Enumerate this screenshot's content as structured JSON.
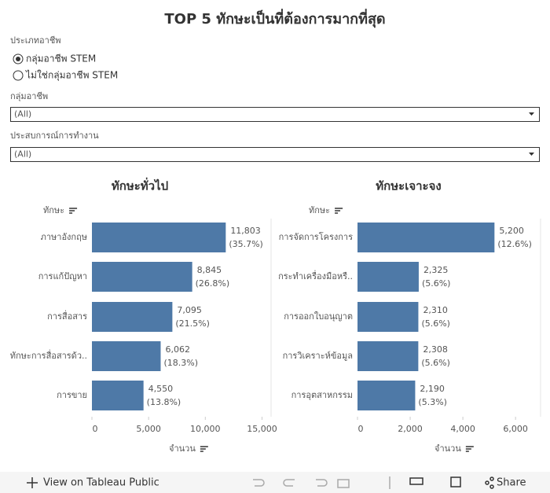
{
  "title": "TOP 5 ทักษะเป็นที่ต้องการมากที่สุด",
  "filters": {
    "occupation_type": {
      "label": "ประเภทอาชีพ",
      "options": [
        "กลุ่มอาชีพ STEM",
        "ไม่ใช่กลุ่มอาชีพ STEM"
      ]
    },
    "occupation_group": {
      "label": "กลุ่มอาชีพ",
      "value": "(All)"
    },
    "experience": {
      "label": "ประสบการณ์การทำงาน",
      "value": "(All)"
    }
  },
  "toolbar": {
    "view_link": "View on Tableau Public",
    "share": "Share"
  },
  "chart_data": [
    {
      "type": "barh",
      "title": "ทักษะทั่วไป",
      "y_label": "ทักษะ",
      "x_label": "จำนวน",
      "color": "#4e79a7",
      "categories": [
        "ภาษาอังกฤษ",
        "การแก้ปัญหา",
        "การสื่อสาร",
        "ทักษะการสื่อสารด้ว..",
        "การขาย"
      ],
      "values": [
        11803,
        8845,
        7095,
        6062,
        4550
      ],
      "value_labels": [
        "11,803",
        "8,845",
        "7,095",
        "6,062",
        "4,550"
      ],
      "percent_labels": [
        "(35.7%)",
        "(26.8%)",
        "(21.5%)",
        "(18.3%)",
        "(13.8%)"
      ],
      "xlim": [
        0,
        15800
      ],
      "xticks": [
        0,
        {
          "value": 5000,
          "label": "5,000"
        },
        {
          "value": 10000,
          "label": "10,000"
        },
        {
          "value": 15000,
          "label": "15,000"
        }
      ]
    },
    {
      "type": "barh",
      "title": "ทักษะเจาะจง",
      "y_label": "ทักษะ",
      "x_label": "จำนวน",
      "color": "#4e79a7",
      "categories": [
        "การจัดการโครงการ",
        "กระทำเครื่องมือหรื..",
        "การออกใบอนุญาต",
        "การวิเคราะห์ข้อมูล",
        "การอุตสาหกรรม"
      ],
      "values": [
        5200,
        2325,
        2310,
        2308,
        2190
      ],
      "value_labels": [
        "5,200",
        "2,325",
        "2,310",
        "2,308",
        "2,190"
      ],
      "percent_labels": [
        "(12.6%)",
        "(5.6%)",
        "(5.6%)",
        "(5.6%)",
        "(5.3%)"
      ],
      "xlim": [
        0,
        6950
      ],
      "xticks": [
        0,
        {
          "value": 2000,
          "label": "2,000"
        },
        {
          "value": 4000,
          "label": "4,000"
        },
        {
          "value": 6000,
          "label": "6,000"
        }
      ]
    }
  ]
}
